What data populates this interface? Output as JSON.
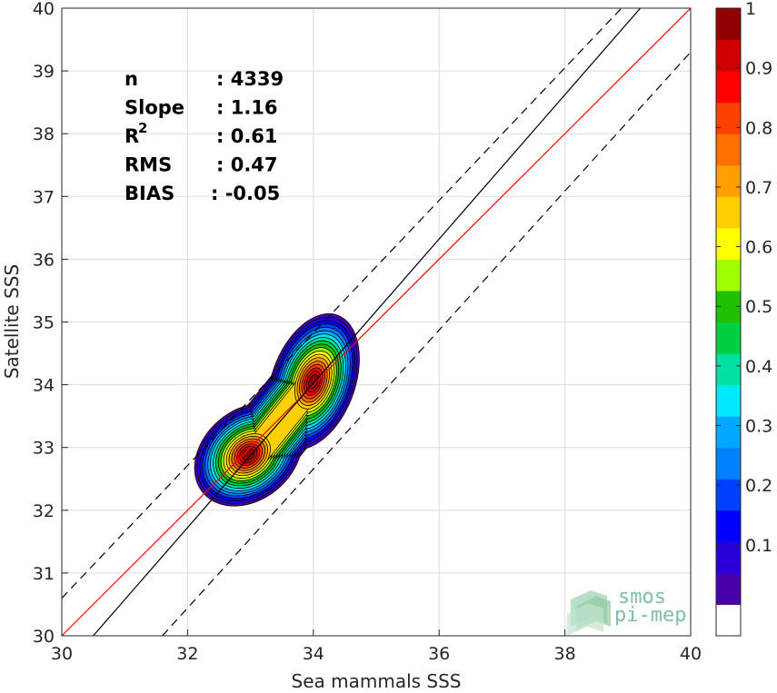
{
  "chart_data": {
    "type": "contour",
    "xlabel": "Sea mammals SSS",
    "ylabel": "Satellite SSS",
    "xlim": [
      30,
      40
    ],
    "ylim": [
      30,
      40
    ],
    "xticks": [
      "30",
      "32",
      "34",
      "36",
      "38",
      "40"
    ],
    "yticks": [
      "30",
      "31",
      "32",
      "33",
      "34",
      "35",
      "36",
      "37",
      "38",
      "39",
      "40"
    ],
    "grid": true,
    "stats": [
      {
        "key": "n",
        "value": ": 4339"
      },
      {
        "key": "Slope",
        "value": ": 1.16"
      },
      {
        "key": "R",
        "sup": "2",
        "value": ": 0.61"
      },
      {
        "key": "RMS",
        "value": ": 0.47"
      },
      {
        "key": "BIAS",
        "value": ": -0.05"
      }
    ],
    "lines": [
      {
        "name": "identity",
        "color": "#ff0000",
        "x": [
          30,
          40
        ],
        "y": [
          30,
          40
        ],
        "dash": false
      },
      {
        "name": "regression",
        "color": "#000000",
        "x": [
          30.5,
          39.2
        ],
        "y": [
          30,
          40
        ],
        "dash": false
      },
      {
        "name": "upper-bound",
        "color": "#000000",
        "x": [
          30,
          38.9
        ],
        "y": [
          30.6,
          40
        ],
        "dash": true
      },
      {
        "name": "lower-bound",
        "color": "#000000",
        "x": [
          31.6,
          40
        ],
        "y": [
          30,
          39.3
        ],
        "dash": true
      }
    ],
    "density_peaks": [
      {
        "x": 33.0,
        "y": 32.8
      },
      {
        "x": 34.0,
        "y": 34.05
      }
    ],
    "colorbar": {
      "ticks": [
        "0.1",
        "0.2",
        "0.3",
        "0.4",
        "0.5",
        "0.6",
        "0.7",
        "0.8",
        "0.9",
        "1"
      ],
      "range": [
        0,
        1
      ],
      "colors": [
        "#ffffff",
        "#4a00a8",
        "#2a00d8",
        "#0000ff",
        "#0040ff",
        "#0080ff",
        "#00a8ff",
        "#00e8ff",
        "#00e0a0",
        "#00d040",
        "#20c000",
        "#a0ff00",
        "#ffff00",
        "#ffd000",
        "#ffa000",
        "#ff7000",
        "#ff4000",
        "#ff0000",
        "#d00000",
        "#900000"
      ]
    }
  },
  "watermark": {
    "line1": "smos",
    "line2": "pi-mep"
  }
}
